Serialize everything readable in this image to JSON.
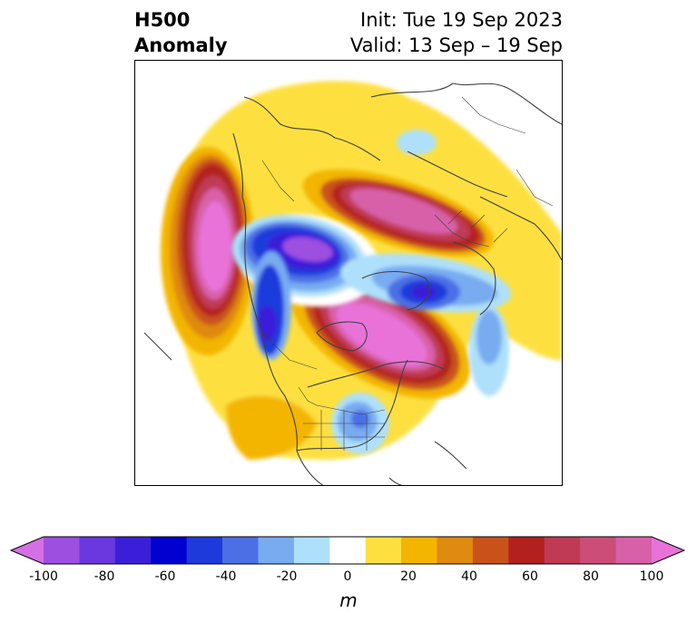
{
  "title": {
    "left_line1": "H500",
    "left_line2": "Anomaly",
    "right_line1": "Init: Tue 19 Sep 2023",
    "right_line2": "Valid: 13 Sep – 19 Sep"
  },
  "colorbar": {
    "unit": "m",
    "tick_labels": [
      "-100",
      "-80",
      "-60",
      "-40",
      "-20",
      "0",
      "20",
      "40",
      "60",
      "80",
      "100"
    ],
    "levels": [
      -100,
      -90,
      -80,
      -70,
      -60,
      -50,
      -40,
      -30,
      -20,
      -10,
      10,
      20,
      30,
      40,
      50,
      60,
      70,
      80,
      90,
      100
    ],
    "colors": [
      "#d66fe6",
      "#9d4fe0",
      "#6a38de",
      "#3b1fd8",
      "#0000d0",
      "#1f3adb",
      "#4c6fe6",
      "#78abf0",
      "#aee0fb",
      "#ffffff",
      "#fde040",
      "#f3b500",
      "#df8a10",
      "#c9521a",
      "#b3211f",
      "#c03a55",
      "#cc4d78",
      "#d860a8",
      "#e872d8"
    ],
    "extend": "both"
  }
}
